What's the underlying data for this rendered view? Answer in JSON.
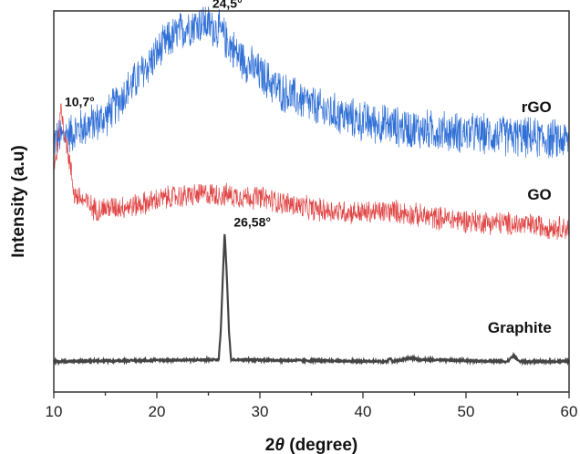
{
  "chart_data": {
    "type": "line",
    "xlabel_prefix": "2",
    "xlabel_symbol": "θ",
    "xlabel_suffix": " (degree)",
    "ylabel": "Intensity (a.u)",
    "xlim": [
      10,
      60
    ],
    "xticks": [
      10,
      20,
      30,
      40,
      50,
      60
    ],
    "y_tick_labels_shown": false,
    "grid": false,
    "series": [
      {
        "name": "rGO",
        "color": "#2f6fd6",
        "noise": 0.06,
        "points": [
          [
            10.0,
            0.66
          ],
          [
            15.0,
            0.72
          ],
          [
            18.0,
            0.82
          ],
          [
            21.0,
            0.92
          ],
          [
            23.0,
            0.96
          ],
          [
            24.5,
            0.97
          ],
          [
            26.0,
            0.95
          ],
          [
            28.0,
            0.88
          ],
          [
            32.0,
            0.79
          ],
          [
            36.0,
            0.74
          ],
          [
            40.0,
            0.71
          ],
          [
            45.0,
            0.69
          ],
          [
            50.0,
            0.68
          ],
          [
            55.0,
            0.67
          ],
          [
            60.0,
            0.66
          ]
        ]
      },
      {
        "name": "GO",
        "color": "#e04545",
        "noise": 0.035,
        "points": [
          [
            10.0,
            0.6
          ],
          [
            10.3,
            0.63
          ],
          [
            10.7,
            0.74
          ],
          [
            11.2,
            0.66
          ],
          [
            12.0,
            0.52
          ],
          [
            14.0,
            0.48
          ],
          [
            18.0,
            0.49
          ],
          [
            21.0,
            0.51
          ],
          [
            25.0,
            0.52
          ],
          [
            30.0,
            0.51
          ],
          [
            35.0,
            0.48
          ],
          [
            40.0,
            0.47
          ],
          [
            43.0,
            0.475
          ],
          [
            46.0,
            0.46
          ],
          [
            50.0,
            0.45
          ],
          [
            55.0,
            0.44
          ],
          [
            60.0,
            0.43
          ]
        ]
      },
      {
        "name": "Graphite",
        "color": "#444444",
        "noise": 0.003,
        "points": [
          [
            10.0,
            0.08
          ],
          [
            26.0,
            0.085
          ],
          [
            26.2,
            0.16
          ],
          [
            26.4,
            0.3
          ],
          [
            26.58,
            0.42
          ],
          [
            26.8,
            0.3
          ],
          [
            27.0,
            0.16
          ],
          [
            27.2,
            0.085
          ],
          [
            42.3,
            0.08
          ],
          [
            42.6,
            0.088
          ],
          [
            42.9,
            0.08
          ],
          [
            44.0,
            0.085
          ],
          [
            44.6,
            0.09
          ],
          [
            45.5,
            0.085
          ],
          [
            54.0,
            0.08
          ],
          [
            54.6,
            0.095
          ],
          [
            55.2,
            0.08
          ],
          [
            60.0,
            0.08
          ]
        ]
      }
    ],
    "annotations": [
      {
        "text": "24,5°",
        "x": 24.5,
        "y": 0.97
      },
      {
        "text": "10,7°",
        "x": 10.7,
        "y": 0.74
      },
      {
        "text": "26,58°",
        "x": 26.58,
        "y": 0.42
      }
    ]
  }
}
